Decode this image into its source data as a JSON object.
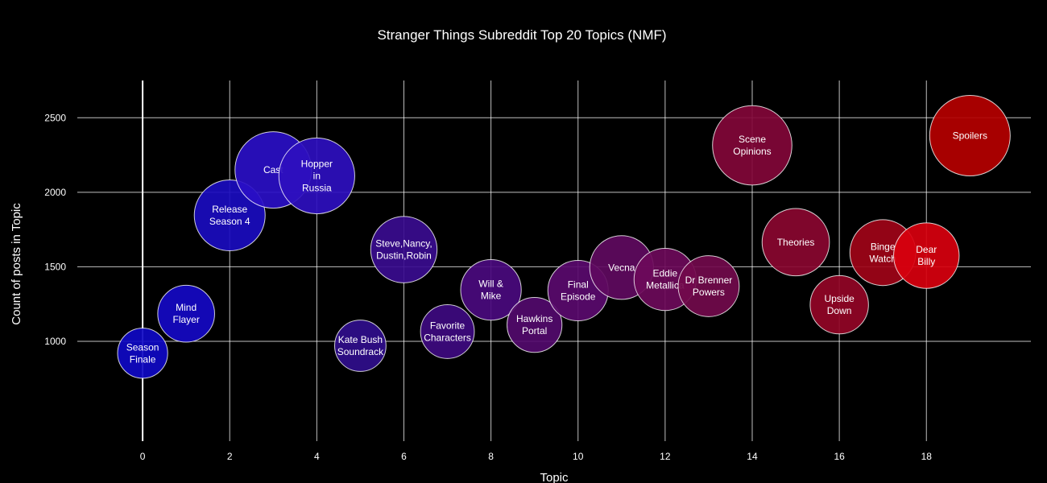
{
  "chart_data": {
    "type": "scatter",
    "title": "Stranger Things Subreddit Top 20 Topics (NMF)",
    "xlabel": "Topic",
    "ylabel": "Count of posts in Topic",
    "xlim": [
      -1.5,
      20.4
    ],
    "ylim": [
      330,
      2750
    ],
    "xticks": [
      0,
      2,
      4,
      6,
      8,
      10,
      12,
      14,
      16,
      18
    ],
    "yticks": [
      1000,
      1500,
      2000,
      2500
    ],
    "grid": true,
    "legend": "none",
    "points": [
      {
        "x": 0,
        "y": 920,
        "label": [
          "Season",
          "Finale"
        ],
        "color": "#0f09c4"
      },
      {
        "x": 1,
        "y": 1185,
        "label": [
          "Mind",
          "Flayer"
        ],
        "color": "#1509c4"
      },
      {
        "x": 2,
        "y": 1845,
        "label": [
          "Release",
          "Season 4"
        ],
        "color": "#1a0cbf"
      },
      {
        "x": 3,
        "y": 2150,
        "label": [
          "Cast"
        ],
        "color": "#2a0fc6"
      },
      {
        "x": 4,
        "y": 2110,
        "label": [
          "Hopper",
          "in",
          "Russia"
        ],
        "color": "#2e0fbf"
      },
      {
        "x": 5,
        "y": 970,
        "label": [
          "Kate Bush",
          "Soundrack"
        ],
        "color": "#300e8c"
      },
      {
        "x": 6,
        "y": 1615,
        "label": [
          "Steve,Nancy,",
          "Dustin,Robin"
        ],
        "color": "#3a0c8f"
      },
      {
        "x": 7,
        "y": 1065,
        "label": [
          "Favorite",
          "Characters"
        ],
        "color": "#3e0a80"
      },
      {
        "x": 8,
        "y": 1345,
        "label": [
          "Will &",
          "Mike"
        ],
        "color": "#4a0a7e"
      },
      {
        "x": 9,
        "y": 1110,
        "label": [
          "Hawkins",
          "Portal"
        ],
        "color": "#520a6c"
      },
      {
        "x": 10,
        "y": 1340,
        "label": [
          "Final",
          "Episode"
        ],
        "color": "#5a0a6e"
      },
      {
        "x": 11,
        "y": 1495,
        "label": [
          "Vecna"
        ],
        "color": "#600a60"
      },
      {
        "x": 12,
        "y": 1415,
        "label": [
          "Eddie",
          "Metallica"
        ],
        "color": "#6c0a5a"
      },
      {
        "x": 13,
        "y": 1370,
        "label": [
          "Dr Brenner",
          "Powers"
        ],
        "color": "#720a4c"
      },
      {
        "x": 14,
        "y": 2315,
        "label": [
          "Scene",
          "Opinions"
        ],
        "color": "#820638"
      },
      {
        "x": 15,
        "y": 1665,
        "label": [
          "Theories"
        ],
        "color": "#8a0630"
      },
      {
        "x": 16,
        "y": 1245,
        "label": [
          "Upside",
          "Down"
        ],
        "color": "#920526"
      },
      {
        "x": 17,
        "y": 1595,
        "label": [
          "Binge",
          "Watch"
        ],
        "color": "#a00418"
      },
      {
        "x": 18,
        "y": 1575,
        "label": [
          "Dear",
          "Billy"
        ],
        "color": "#d8000e"
      },
      {
        "x": 19,
        "y": 2380,
        "label": [
          "Spoilers"
        ],
        "color": "#b50000"
      }
    ]
  }
}
